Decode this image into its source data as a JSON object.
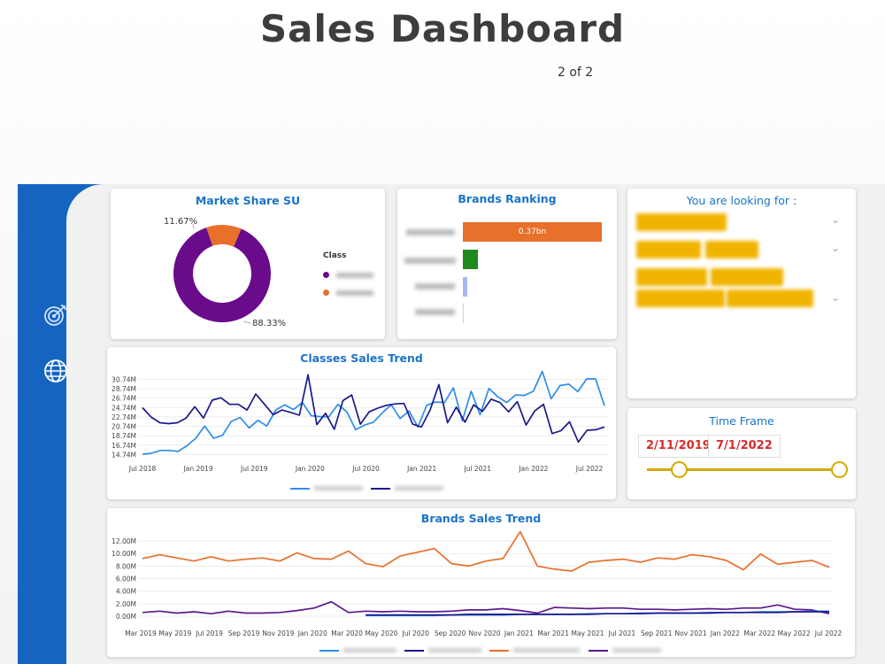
{
  "page": {
    "title": "Sales Dashboard",
    "page_indicator": "2 of 2"
  },
  "sidebar": {
    "icons": [
      "target-icon",
      "globe-icon"
    ]
  },
  "market_share": {
    "title": "Market Share SU",
    "legend_title": "Class",
    "slices": [
      {
        "label_pct": "88.33%",
        "value": 88.33,
        "color": "#6a0b8c"
      },
      {
        "label_pct": "11.67%",
        "value": 11.67,
        "color": "#e8702a"
      }
    ]
  },
  "brands_ranking": {
    "title": "Brands Ranking",
    "bar_label": "0.37bn",
    "bars": [
      {
        "value": 0.37,
        "color": "#e8702a"
      },
      {
        "value": 0.04,
        "color": "#1e8a1e"
      },
      {
        "value": 0.012,
        "color": "#a9b8f0"
      },
      {
        "value": 0.002,
        "color": "#cfcfcf"
      }
    ],
    "max": 0.37
  },
  "filters": {
    "title": "You are looking for :"
  },
  "time_frame": {
    "title": "Time Frame",
    "start": "2/11/2019",
    "end": "7/1/2022",
    "accent": "#d4a900"
  },
  "chart_data": [
    {
      "type": "line",
      "title": "Classes Sales Trend",
      "y_ticks": [
        "14.74M",
        "16.74M",
        "18.74M",
        "20.74M",
        "22.74M",
        "24.74M",
        "26.74M",
        "28.74M",
        "30.74M"
      ],
      "ylim": [
        13.5,
        32.5
      ],
      "x_ticks": [
        "Jul 2018",
        "Jan 2019",
        "Jul 2019",
        "Jan 2020",
        "Jul 2020",
        "Jan 2021",
        "Jul 2021",
        "Jan 2022",
        "Jul 2022"
      ],
      "series": [
        {
          "color": "#2e8ee6",
          "values": [
            14.8,
            15.0,
            15.6,
            15.6,
            15.4,
            16.6,
            18.2,
            20.8,
            18.2,
            18.8,
            21.8,
            22.6,
            20.4,
            22.0,
            20.8,
            24.2,
            25.3,
            24.3,
            25.8,
            23.0,
            22.8,
            22.8,
            25.4,
            23.8,
            20.0,
            21.0,
            21.6,
            23.6,
            25.3,
            22.4,
            24.0,
            20.6,
            25.2,
            25.9,
            25.8,
            28.9,
            21.9,
            28.2,
            23.2,
            28.8,
            27.0,
            25.8,
            27.4,
            27.3,
            28.2,
            32.4,
            26.6,
            29.4,
            29.7,
            28.1,
            30.8,
            30.8,
            25.1
          ]
        },
        {
          "color": "#1a1a8c",
          "values": [
            24.7,
            22.7,
            21.5,
            21.3,
            21.5,
            22.5,
            24.9,
            22.5,
            26.3,
            26.8,
            25.4,
            25.4,
            24.2,
            27.6,
            25.4,
            23.2,
            24.2,
            23.7,
            23.1,
            31.7,
            21.1,
            23.5,
            20.1,
            26.2,
            27.4,
            21.2,
            23.8,
            24.6,
            25.2,
            25.5,
            25.6,
            21.2,
            20.6,
            24.2,
            29.6,
            21.5,
            24.8,
            21.6,
            25.3,
            23.9,
            26.5,
            25.8,
            23.8,
            26.0,
            21.0,
            24.0,
            25.4,
            19.2,
            19.8,
            21.7,
            17.4,
            19.9,
            20.0,
            20.6
          ]
        }
      ]
    },
    {
      "type": "line",
      "title": "Brands Sales Trend",
      "y_ticks": [
        "0.00M",
        "2.00M",
        "4.00M",
        "6.00M",
        "8.00M",
        "10.00M",
        "12.00M"
      ],
      "ylim": [
        0,
        13
      ],
      "x_ticks": [
        "Mar 2019",
        "May 2019",
        "Jul 2019",
        "Sep 2019",
        "Nov 2019",
        "Jan 2020",
        "Mar 2020",
        "May 2020",
        "Jul 2020",
        "Sep 2020",
        "Nov 2020",
        "Jan 2021",
        "Mar 2021",
        "May 2021",
        "Jul 2021",
        "Sep 2021",
        "Nov 2021",
        "Jan 2022",
        "Mar 2022",
        "May 2022",
        "Jul 2022"
      ],
      "series": [
        {
          "color": "#e8702a",
          "values": [
            9.2,
            9.8,
            9.3,
            8.8,
            9.5,
            8.8,
            9.1,
            9.3,
            8.8,
            10.1,
            9.2,
            9.1,
            10.4,
            8.4,
            7.9,
            9.6,
            10.2,
            10.8,
            8.4,
            8.0,
            8.8,
            9.2,
            13.5,
            8.0,
            7.5,
            7.2,
            8.6,
            8.9,
            9.1,
            8.6,
            9.3,
            9.1,
            9.8,
            9.5,
            8.9,
            7.4,
            9.9,
            8.3,
            8.6,
            8.9,
            7.8
          ]
        },
        {
          "color": "#5a1a8c",
          "values": [
            0.6,
            0.8,
            0.5,
            0.7,
            0.4,
            0.8,
            0.5,
            0.5,
            0.6,
            0.9,
            1.3,
            2.3,
            0.6,
            0.8,
            0.7,
            0.8,
            0.7,
            0.7,
            0.8,
            1.0,
            1.0,
            1.2,
            0.9,
            0.5,
            1.4,
            1.3,
            1.2,
            1.3,
            1.3,
            1.1,
            1.1,
            1.0,
            1.1,
            1.2,
            1.1,
            1.3,
            1.3,
            1.8,
            1.1,
            1.0,
            0.4
          ]
        },
        {
          "color": "#2e8ee6",
          "values": [
            null,
            null,
            null,
            null,
            null,
            null,
            null,
            null,
            null,
            null,
            null,
            null,
            null,
            0.1,
            0.1,
            0.1,
            0.1,
            0.1,
            0.2,
            0.2,
            0.2,
            0.2,
            0.3,
            0.3,
            0.3,
            0.3,
            0.4,
            0.4,
            0.4,
            0.5,
            0.5,
            0.5,
            0.5,
            0.6,
            0.6,
            0.6,
            0.7,
            0.7,
            0.7,
            0.8,
            0.8
          ]
        },
        {
          "color": "#1a1a8c",
          "values": [
            null,
            null,
            null,
            null,
            null,
            null,
            null,
            null,
            null,
            null,
            null,
            null,
            null,
            0.2,
            0.2,
            0.2,
            0.2,
            0.2,
            0.2,
            0.3,
            0.3,
            0.3,
            0.3,
            0.3,
            0.3,
            0.3,
            0.3,
            0.4,
            0.4,
            0.4,
            0.5,
            0.5,
            0.5,
            0.5,
            0.6,
            0.6,
            0.6,
            0.6,
            0.7,
            0.7,
            0.7
          ]
        }
      ]
    }
  ]
}
